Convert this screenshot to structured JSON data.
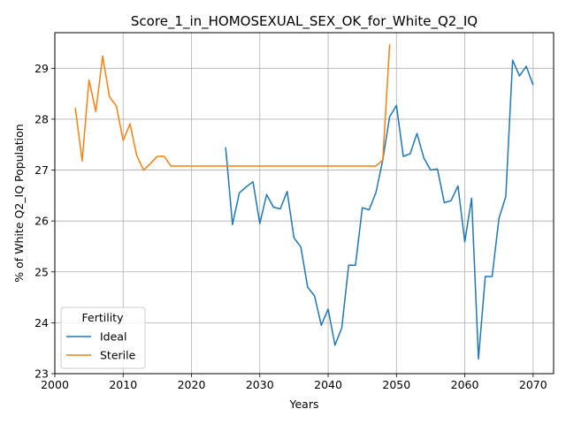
{
  "chart_data": {
    "type": "line",
    "title": "Score_1_in_HOMOSEXUAL_SEX_OK_for_White_Q2_IQ",
    "xlabel": "Years",
    "ylabel": "% of White Q2_IQ Population",
    "xlim": [
      2000,
      2073
    ],
    "ylim": [
      23,
      29.7
    ],
    "xticks": [
      2000,
      2010,
      2020,
      2030,
      2040,
      2050,
      2060,
      2070
    ],
    "yticks": [
      23,
      24,
      25,
      26,
      27,
      28,
      29
    ],
    "grid": true,
    "legend": {
      "title": "Fertility",
      "placement": "bottom-left"
    },
    "series": [
      {
        "name": "Ideal",
        "color": "#1f77b4",
        "x": [
          2025,
          2026,
          2027,
          2028,
          2029,
          2030,
          2031,
          2032,
          2033,
          2034,
          2035,
          2036,
          2037,
          2038,
          2039,
          2040,
          2041,
          2042,
          2043,
          2044,
          2045,
          2046,
          2047,
          2048,
          2049,
          2050,
          2051,
          2052,
          2053,
          2054,
          2055,
          2056,
          2057,
          2058,
          2059,
          2060,
          2061,
          2062,
          2063,
          2064,
          2065,
          2066,
          2067,
          2068,
          2069,
          2070
        ],
        "y": [
          27.45,
          25.93,
          26.55,
          26.67,
          26.77,
          25.95,
          26.52,
          26.27,
          26.24,
          26.58,
          25.67,
          25.49,
          24.7,
          24.53,
          23.95,
          24.27,
          23.56,
          23.9,
          25.13,
          25.13,
          26.26,
          26.22,
          26.56,
          27.2,
          28.05,
          28.27,
          27.27,
          27.32,
          27.72,
          27.24,
          27.0,
          27.02,
          26.36,
          26.4,
          26.69,
          25.59,
          26.45,
          23.29,
          24.91,
          24.91,
          26.05,
          26.48,
          29.16,
          28.85,
          29.04,
          28.67
        ]
      },
      {
        "name": "Sterile",
        "color": "#ff7f0e",
        "x": [
          2003,
          2004,
          2005,
          2006,
          2007,
          2008,
          2009,
          2010,
          2011,
          2012,
          2013,
          2014,
          2015,
          2016,
          2017,
          2018,
          2019,
          2020,
          2021,
          2022,
          2023,
          2024,
          2025,
          2026,
          2027,
          2028,
          2029,
          2030,
          2031,
          2032,
          2033,
          2034,
          2035,
          2036,
          2037,
          2038,
          2039,
          2040,
          2041,
          2042,
          2043,
          2044,
          2045,
          2046,
          2047,
          2048,
          2049
        ],
        "y": [
          28.22,
          27.18,
          28.77,
          28.15,
          29.24,
          28.44,
          28.26,
          27.58,
          27.91,
          27.28,
          27.0,
          27.13,
          27.27,
          27.27,
          27.08,
          27.08,
          27.08,
          27.08,
          27.08,
          27.08,
          27.08,
          27.08,
          27.08,
          27.08,
          27.08,
          27.08,
          27.08,
          27.08,
          27.08,
          27.08,
          27.08,
          27.08,
          27.08,
          27.08,
          27.08,
          27.08,
          27.08,
          27.08,
          27.08,
          27.08,
          27.08,
          27.08,
          27.08,
          27.08,
          27.08,
          27.2,
          29.47
        ]
      }
    ]
  }
}
